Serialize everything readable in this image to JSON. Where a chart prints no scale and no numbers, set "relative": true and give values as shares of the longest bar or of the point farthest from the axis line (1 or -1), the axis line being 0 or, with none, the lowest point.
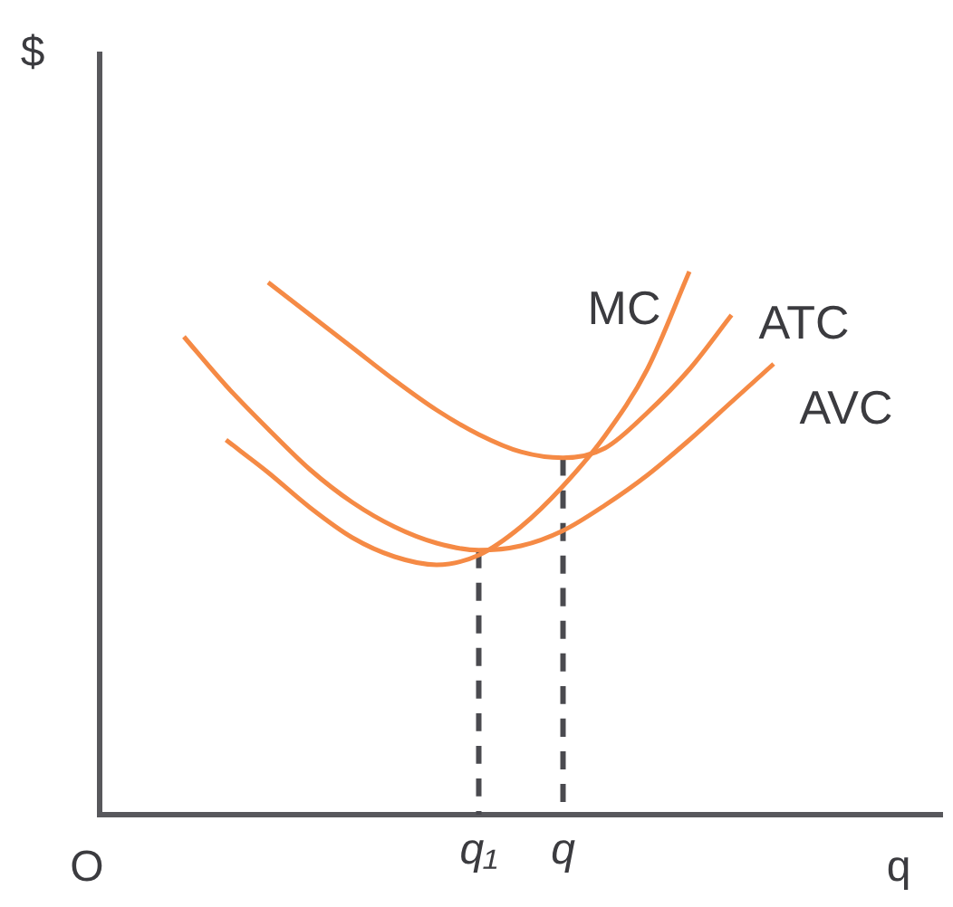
{
  "chart_data": {
    "type": "line",
    "relative": true,
    "xlabel": "q",
    "ylabel": "$",
    "annotations": [
      "O"
    ],
    "legend": false,
    "grid": false,
    "marker": "none",
    "categories": [
      null,
      null,
      null,
      null,
      null,
      null,
      null,
      null,
      null,
      "q₁",
      null,
      "q",
      null,
      null,
      null,
      null,
      null,
      null,
      null,
      null,
      null
    ],
    "series": [
      {
        "name": "MC",
        "color": "#f58a45",
        "values": [
          null,
          null,
          null,
          0.69,
          0.63,
          0.565,
          0.51,
          0.475,
          0.46,
          0.478,
          0.53,
          0.605,
          0.698,
          0.82,
          1,
          null,
          null,
          null,
          null,
          null,
          null
        ]
      },
      {
        "name": "ATC",
        "color": "#f58a45",
        "values": [
          null,
          null,
          null,
          null,
          0.98,
          0.92,
          0.86,
          0.8,
          0.745,
          0.7,
          0.668,
          0.657,
          0.675,
          0.74,
          0.82,
          0.92,
          null,
          null,
          null,
          null,
          null
        ]
      },
      {
        "name": "AVC",
        "color": "#f58a45",
        "values": [
          null,
          null,
          0.88,
          0.79,
          0.71,
          0.635,
          0.575,
          0.53,
          0.5,
          0.487,
          0.495,
          0.523,
          0.57,
          0.625,
          0.69,
          0.76,
          0.83,
          null,
          null,
          null,
          null
        ]
      },
      {
        "color": "#4a4a4f",
        "line_style": "dashed",
        "x": [
          "q₁",
          "q₁"
        ],
        "values": [
          0.487,
          0
        ]
      },
      {
        "color": "#4a4a4f",
        "line_style": "dashed",
        "x": [
          "q",
          "q"
        ],
        "values": [
          0.657,
          0
        ]
      }
    ]
  }
}
